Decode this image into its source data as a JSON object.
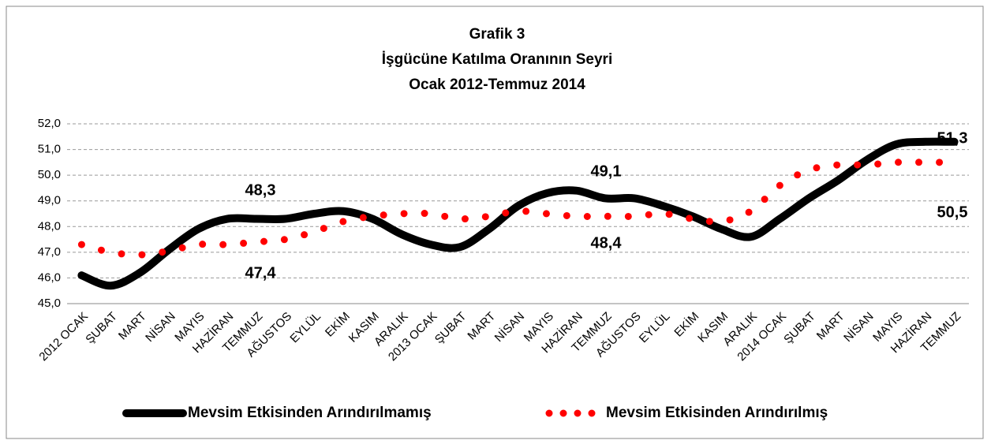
{
  "chart_data": {
    "type": "line",
    "title": [
      "Grafik 3",
      "İşgücüne Katılma Oranının Seyri",
      "Ocak 2012-Temmuz 2014"
    ],
    "categories": [
      "2012 OCAK",
      "ŞUBAT",
      "MART",
      "NİSAN",
      "MAYIS",
      "HAZİRAN",
      "TEMMUZ",
      "AĞUSTOS",
      "EYLÜL",
      "EKİM",
      "KASIM",
      "ARALIK",
      "2013 OCAK",
      "ŞUBAT",
      "MART",
      "NİSAN",
      "MAYIS",
      "HAZİRAN",
      "TEMMUZ",
      "AĞUSTOS",
      "EYLÜL",
      "EKİM",
      "KASIM",
      "ARALIK",
      "2014 OCAK",
      "ŞUBAT",
      "MART",
      "NİSAN",
      "MAYIS",
      "HAZİRAN",
      "TEMMUZ"
    ],
    "series": [
      {
        "name": "Mevsim Etkisinden Arındırılmamış",
        "color": "#000000",
        "style": "solid",
        "values": [
          46.1,
          45.7,
          46.2,
          47.1,
          47.9,
          48.3,
          48.3,
          48.3,
          48.5,
          48.6,
          48.3,
          47.7,
          47.3,
          47.2,
          47.9,
          48.8,
          49.3,
          49.4,
          49.1,
          49.1,
          48.8,
          48.4,
          47.9,
          47.6,
          48.3,
          49.1,
          49.8,
          50.6,
          51.2,
          51.3,
          51.3
        ]
      },
      {
        "name": "Mevsim Etkisinden Arındırılmış",
        "color": "#ff0000",
        "style": "dotted",
        "values": [
          47.3,
          47.0,
          46.9,
          47.05,
          47.3,
          47.3,
          47.4,
          47.5,
          47.8,
          48.2,
          48.4,
          48.5,
          48.5,
          48.3,
          48.4,
          48.6,
          48.5,
          48.4,
          48.4,
          48.4,
          48.5,
          48.3,
          48.2,
          48.6,
          49.6,
          50.2,
          50.4,
          50.4,
          50.5,
          50.5,
          50.5
        ]
      }
    ],
    "annotations": [
      "48,3",
      "47,4",
      "49,1",
      "48,4",
      "51,3",
      "50,5"
    ],
    "ylim": [
      45,
      52
    ],
    "yticks": [
      {
        "value": 45,
        "label": "45,0"
      },
      {
        "value": 46,
        "label": "46,0"
      },
      {
        "value": 47,
        "label": "47,0"
      },
      {
        "value": 48,
        "label": "48,0"
      },
      {
        "value": 49,
        "label": "49,0"
      },
      {
        "value": 50,
        "label": "50,0"
      },
      {
        "value": 51,
        "label": "51,0"
      },
      {
        "value": 52,
        "label": "52,0"
      }
    ],
    "grid": true
  }
}
